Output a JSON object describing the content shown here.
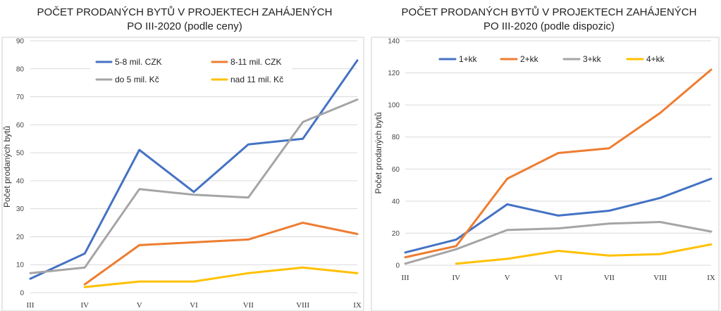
{
  "chart_data": [
    {
      "type": "line",
      "title_line1": "POČET PRODANÝCH BYTŮ V PROJEKTECH ZAHÁJENÝCH",
      "title_line2": "PO III-2020 (podle ceny)",
      "ylabel": "Počet prodaných bytů",
      "xlabel": "",
      "categories": [
        "III",
        "IV",
        "V",
        "VI",
        "VII",
        "VIII",
        "IX"
      ],
      "ylim": [
        0,
        90
      ],
      "yticks": [
        0,
        10,
        20,
        30,
        40,
        50,
        60,
        70,
        80,
        90
      ],
      "grid": true,
      "legend_placement": "top",
      "series": [
        {
          "name": "5-8 mil. CZK",
          "color": "#4472c4",
          "values": [
            5,
            14,
            51,
            36,
            53,
            55,
            83
          ]
        },
        {
          "name": "8-11 mil. CZK",
          "color": "#ed7d31",
          "values": [
            null,
            3,
            17,
            18,
            19,
            25,
            21
          ]
        },
        {
          "name": "do 5 mil. Kč",
          "color": "#a5a5a5",
          "values": [
            7,
            9,
            37,
            35,
            34,
            61,
            69
          ]
        },
        {
          "name": "nad 11 mil. Kč",
          "color": "#ffc000",
          "values": [
            null,
            2,
            4,
            4,
            7,
            9,
            7
          ]
        }
      ]
    },
    {
      "type": "line",
      "title_line1": "POČET PRODANÝCH BYTŮ V PROJEKTECH ZAHÁJENÝCH",
      "title_line2": "PO III-2020 (podle dispozic)",
      "ylabel": "Počet prodaných bytů",
      "xlabel": "",
      "categories": [
        "III",
        "IV",
        "V",
        "VI",
        "VII",
        "VIII",
        "IX"
      ],
      "ylim": [
        0,
        140
      ],
      "yticks": [
        0,
        20,
        40,
        60,
        80,
        100,
        120,
        140
      ],
      "grid": true,
      "legend_placement": "top",
      "series": [
        {
          "name": "1+kk",
          "color": "#4472c4",
          "values": [
            8,
            16,
            38,
            31,
            34,
            42,
            54
          ]
        },
        {
          "name": "2+kk",
          "color": "#ed7d31",
          "values": [
            5,
            12,
            54,
            70,
            73,
            95,
            122
          ]
        },
        {
          "name": "3+kk",
          "color": "#a5a5a5",
          "values": [
            1,
            10,
            22,
            23,
            26,
            27,
            21
          ]
        },
        {
          "name": "4+kk",
          "color": "#ffc000",
          "values": [
            null,
            1,
            4,
            9,
            6,
            7,
            13
          ]
        }
      ]
    }
  ]
}
